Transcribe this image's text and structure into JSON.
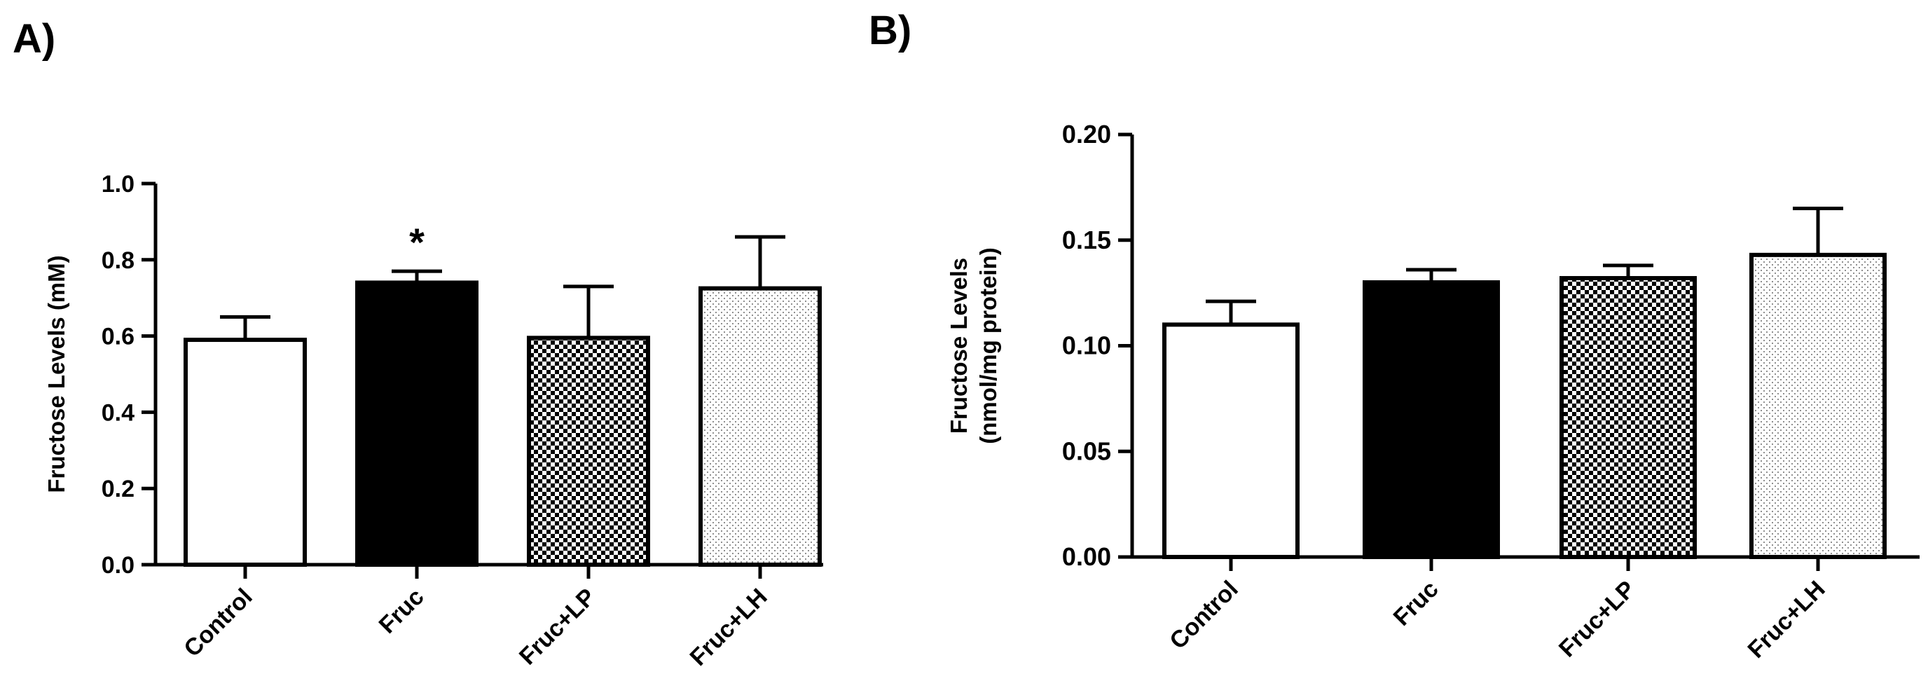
{
  "panels": [
    {
      "label": "A)"
    },
    {
      "label": "B)"
    }
  ],
  "chart_data": [
    {
      "type": "bar",
      "title": "",
      "ylabel_lines": [
        "Fructose Levels (mM)"
      ],
      "categories": [
        "Control",
        "Fruc",
        "Fruc+LP",
        "Fruc+LH"
      ],
      "values": [
        0.59,
        0.74,
        0.595,
        0.725
      ],
      "errors": [
        0.06,
        0.03,
        0.135,
        0.135
      ],
      "annotations": [
        "",
        "*",
        "",
        ""
      ],
      "patterns": [
        "white",
        "black",
        "checker",
        "dots"
      ],
      "ylim": [
        0,
        1.0
      ],
      "yticks": [
        0.0,
        0.2,
        0.4,
        0.6,
        0.8,
        1.0
      ],
      "ytick_labels": [
        "0.0",
        "0.2",
        "0.4",
        "0.6",
        "0.8",
        "1.0"
      ]
    },
    {
      "type": "bar",
      "title": "",
      "ylabel_lines": [
        "Fructose Levels",
        "(nmol/mg protein)"
      ],
      "categories": [
        "Control",
        "Fruc",
        "Fruc+LP",
        "Fruc+LH"
      ],
      "values": [
        0.11,
        0.13,
        0.132,
        0.143
      ],
      "errors": [
        0.011,
        0.006,
        0.006,
        0.022
      ],
      "annotations": [
        "",
        "",
        "",
        ""
      ],
      "patterns": [
        "white",
        "black",
        "checker",
        "dots"
      ],
      "ylim": [
        0,
        0.2
      ],
      "yticks": [
        0.0,
        0.05,
        0.1,
        0.15,
        0.2
      ],
      "ytick_labels": [
        "0.00",
        "0.05",
        "0.10",
        "0.15",
        "0.20"
      ]
    }
  ]
}
